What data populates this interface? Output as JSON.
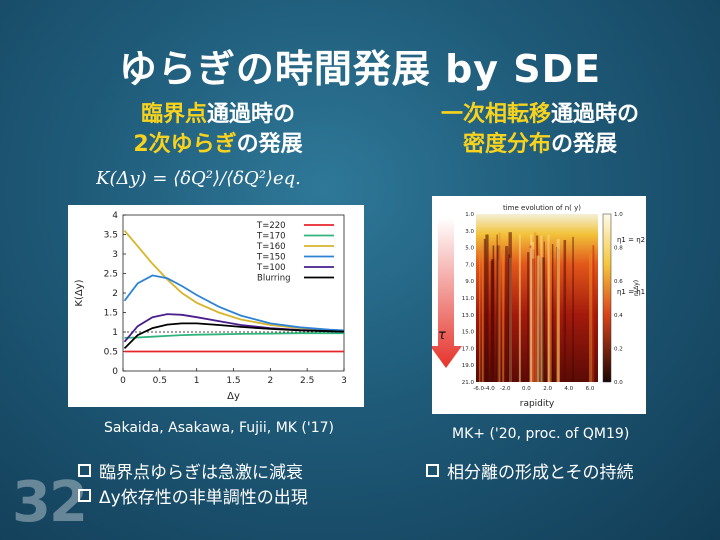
{
  "title": "ゆらぎの時間発展 by SDE",
  "left": {
    "heading_line1_yellow": "臨界点",
    "heading_line1_white": "通過時の",
    "heading_line2_yellow": "2次ゆらぎ",
    "heading_line2_white": "の発展",
    "formula": "K(Δy) = ⟨δQ²⟩/⟨δQ²⟩eq.",
    "citation": "Sakaida, Asakawa, Fujii, MK ('17)"
  },
  "right": {
    "heading_line1_yellow": "一次相転移",
    "heading_line1_white": "通過時の",
    "heading_line2_yellow": "密度分布",
    "heading_line2_white": "の発展",
    "heatmap_title": "time evolution of n( y)",
    "xlabel": "rapidity",
    "x_ticks": [
      "-6.0-4.0",
      "-2.0",
      "0.0",
      "2.0",
      "4.0",
      "6.0"
    ],
    "y_ticks": [
      "1.0",
      "3.0",
      "5.0",
      "7.0",
      "9.0",
      "11.0",
      "13.0",
      "15.0",
      "17.0",
      "19.0",
      "21.0"
    ],
    "colorbar_ticks": [
      "1.0",
      "0.8",
      "0.6",
      "0.4",
      "0.2",
      "0.0"
    ],
    "tau_label": "τ",
    "annot_upper": "η1 = η2",
    "annot_lower": "η1 = η1",
    "side_label": "n(Δy)",
    "citation": "MK+ ('20, proc. of QM19)"
  },
  "bullets_left": [
    "臨界点ゆらぎは急激に減衰",
    "Δy依存性の非単調性の出現"
  ],
  "bullets_right": [
    "相分離の形成とその持続"
  ],
  "slide_number": "32",
  "chart_data": {
    "type": "line",
    "title": "",
    "xlabel": "Δy",
    "ylabel": "K(Δy)",
    "xlim": [
      0,
      3
    ],
    "ylim": [
      0,
      4
    ],
    "x_ticks": [
      "0",
      "0.5",
      "1",
      "1.5",
      "2",
      "2.5",
      "3"
    ],
    "y_ticks": [
      "0",
      "0.5",
      "1",
      "1.5",
      "2",
      "2.5",
      "3",
      "3.5",
      "4"
    ],
    "legend": "top-right",
    "reference_line": 1,
    "x": [
      0.02,
      0.2,
      0.4,
      0.6,
      0.8,
      1.0,
      1.3,
      1.6,
      2.0,
      2.4,
      2.8,
      3.0
    ],
    "series": [
      {
        "name": "T=220",
        "color": "#e8242b",
        "values": [
          0.5,
          0.5,
          0.5,
          0.5,
          0.5,
          0.5,
          0.5,
          0.5,
          0.5,
          0.5,
          0.5,
          0.5
        ]
      },
      {
        "name": "T=170",
        "color": "#2fb47c",
        "values": [
          0.85,
          0.86,
          0.88,
          0.9,
          0.92,
          0.93,
          0.94,
          0.95,
          0.96,
          0.97,
          0.97,
          0.97
        ]
      },
      {
        "name": "T=160",
        "color": "#d8b52a",
        "values": [
          3.6,
          3.2,
          2.75,
          2.35,
          2.0,
          1.75,
          1.5,
          1.32,
          1.18,
          1.1,
          1.05,
          1.03
        ]
      },
      {
        "name": "T=150",
        "color": "#2e82d6",
        "values": [
          1.8,
          2.25,
          2.45,
          2.38,
          2.18,
          1.95,
          1.65,
          1.42,
          1.22,
          1.12,
          1.06,
          1.04
        ]
      },
      {
        "name": "T=100",
        "color": "#4a1e8c",
        "values": [
          0.75,
          1.15,
          1.38,
          1.46,
          1.44,
          1.38,
          1.28,
          1.18,
          1.1,
          1.05,
          1.02,
          1.01
        ]
      },
      {
        "name": "Blurring",
        "color": "#000000",
        "values": [
          0.58,
          0.92,
          1.1,
          1.19,
          1.22,
          1.22,
          1.18,
          1.13,
          1.08,
          1.04,
          1.02,
          1.01
        ]
      }
    ]
  }
}
